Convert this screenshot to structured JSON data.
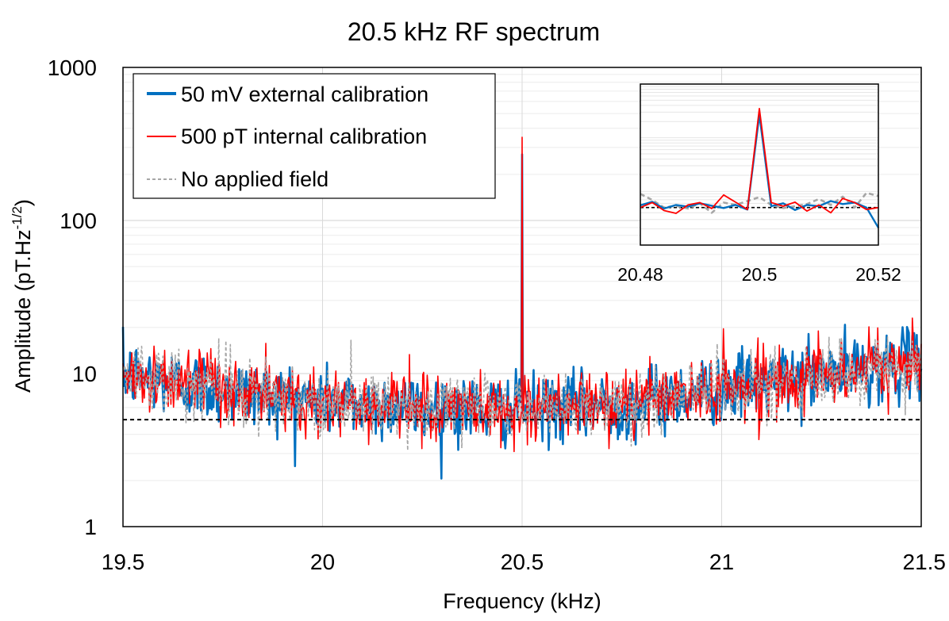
{
  "chart_data": {
    "type": "line",
    "title": "20.5 kHz RF spectrum",
    "xlabel": "Frequency (kHz)",
    "ylabel": "Amplitude (pT.Hz",
    "ylabel_exponent": "-1/2",
    "ylabel_suffix": ")",
    "xlim": [
      19.5,
      21.5
    ],
    "ylim": [
      1,
      1000
    ],
    "yscale": "log",
    "x_ticks": [
      19.5,
      20,
      20.5,
      21,
      21.5
    ],
    "x_tick_labels": [
      "19.5",
      "20",
      "20.5",
      "21",
      "21.5"
    ],
    "y_ticks": [
      1,
      10,
      100,
      1000
    ],
    "y_tick_labels": [
      "1",
      "10",
      "100",
      "1000"
    ],
    "grid": true,
    "legend_position": "top-left",
    "noise_floor_reference": 5,
    "series": [
      {
        "name": "50 mV external calibration",
        "color": "#0070c0",
        "style": "solid-thick",
        "peak": {
          "x": 20.5,
          "y": 270
        },
        "baseline_shape": [
          {
            "x": 19.5,
            "y": 10
          },
          {
            "x": 19.75,
            "y": 7.8
          },
          {
            "x": 20.0,
            "y": 6.6
          },
          {
            "x": 20.25,
            "y": 6.0
          },
          {
            "x": 20.5,
            "y": 5.8
          },
          {
            "x": 20.75,
            "y": 6.3
          },
          {
            "x": 21.0,
            "y": 8.0
          },
          {
            "x": 21.25,
            "y": 9.8
          },
          {
            "x": 21.5,
            "y": 12
          }
        ]
      },
      {
        "name": "500 pT internal calibration",
        "color": "#ff0000",
        "style": "solid-thin",
        "peak": {
          "x": 20.5,
          "y": 350
        },
        "baseline_shape": [
          {
            "x": 19.5,
            "y": 10
          },
          {
            "x": 19.75,
            "y": 7.8
          },
          {
            "x": 20.0,
            "y": 6.6
          },
          {
            "x": 20.25,
            "y": 6.0
          },
          {
            "x": 20.5,
            "y": 5.8
          },
          {
            "x": 20.75,
            "y": 6.3
          },
          {
            "x": 21.0,
            "y": 8.0
          },
          {
            "x": 21.25,
            "y": 9.8
          },
          {
            "x": 21.5,
            "y": 12
          }
        ]
      },
      {
        "name": "No applied field",
        "color": "#a6a6a6",
        "style": "dashed",
        "peak": null,
        "baseline_shape": [
          {
            "x": 19.5,
            "y": 10
          },
          {
            "x": 19.75,
            "y": 7.8
          },
          {
            "x": 20.0,
            "y": 6.6
          },
          {
            "x": 20.25,
            "y": 6.0
          },
          {
            "x": 20.5,
            "y": 5.8
          },
          {
            "x": 20.75,
            "y": 6.3
          },
          {
            "x": 21.0,
            "y": 8.0
          },
          {
            "x": 21.25,
            "y": 9.8
          },
          {
            "x": 21.5,
            "y": 12
          }
        ]
      }
    ],
    "inset": {
      "xlim": [
        20.48,
        20.52
      ],
      "ylim": [
        1,
        1000
      ],
      "x_ticks": [
        20.48,
        20.5,
        20.52
      ],
      "x_tick_labels": [
        "20.48",
        "20.5",
        "20.52"
      ],
      "reference_line": 5,
      "series": [
        {
          "name": "50 mV external calibration",
          "x": [
            20.48,
            20.482,
            20.484,
            20.486,
            20.488,
            20.49,
            20.492,
            20.494,
            20.496,
            20.498,
            20.5,
            20.502,
            20.504,
            20.506,
            20.508,
            20.51,
            20.512,
            20.514,
            20.516,
            20.518,
            20.52
          ],
          "y": [
            5.5,
            6.4,
            4.8,
            5.6,
            5.2,
            6.0,
            5.4,
            4.9,
            5.6,
            4.6,
            270,
            5.3,
            6.0,
            4.5,
            5.6,
            5.3,
            6.6,
            5.8,
            6.2,
            5.0,
            2.1
          ]
        },
        {
          "name": "500 pT internal calibration",
          "x": [
            20.48,
            20.482,
            20.484,
            20.486,
            20.488,
            20.49,
            20.492,
            20.494,
            20.496,
            20.498,
            20.5,
            20.502,
            20.504,
            20.506,
            20.508,
            20.51,
            20.512,
            20.514,
            20.516,
            20.518,
            20.52
          ],
          "y": [
            5.0,
            6.2,
            4.4,
            3.9,
            5.6,
            6.2,
            4.8,
            8.6,
            6.3,
            4.6,
            350,
            6.2,
            5.3,
            6.3,
            4.3,
            5.6,
            4.0,
            7.4,
            6.2,
            4.6,
            5.0
          ]
        },
        {
          "name": "No applied field",
          "x": [
            20.48,
            20.482,
            20.484,
            20.486,
            20.488,
            20.49,
            20.492,
            20.494,
            20.496,
            20.498,
            20.5,
            20.502,
            20.504,
            20.506,
            20.508,
            20.51,
            20.512,
            20.514,
            20.516,
            20.518,
            20.52
          ],
          "y": [
            9.0,
            6.9,
            5.0,
            5.4,
            4.8,
            6.0,
            4.0,
            6.2,
            5.6,
            6.6,
            7.8,
            5.6,
            4.9,
            5.3,
            5.8,
            7.2,
            5.6,
            8.0,
            5.0,
            9.4,
            8.2
          ]
        }
      ]
    }
  }
}
